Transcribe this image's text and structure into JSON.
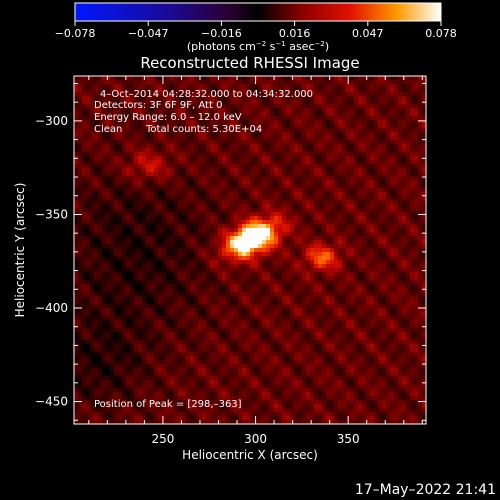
{
  "chart_data": {
    "type": "heatmap",
    "title": "Reconstructed RHESSI Image",
    "xlabel": "Heliocentric X (arcsec)",
    "ylabel": "Heliocentric Y (arcsec)",
    "xlim": [
      202,
      392
    ],
    "ylim": [
      -462,
      -276
    ],
    "x_ticks": [
      250,
      300,
      350
    ],
    "y_ticks": [
      -300,
      -350,
      -400,
      -450
    ],
    "colorbar": {
      "ticks": [
        "−0.078",
        "−0.047",
        "−0.016",
        "0.016",
        "0.047",
        "0.078"
      ],
      "range": [
        -0.078,
        0.078
      ],
      "unit_prefix": "(photons cm",
      "unit_exp1": "−2",
      "unit_mid": " s",
      "unit_exp2": "−1",
      "unit_mid2": " asec",
      "unit_exp3": "−2",
      "unit_suffix": ")"
    },
    "annotations": {
      "time_range": "4–Oct–2014 04:28:32.000 to 04:34:32.000",
      "detectors": "Detectors: 3F 6F 9F, Att 0",
      "energy": "Energy Range: 6.0 – 12.0 keV",
      "method": "Clean",
      "counts": "Total counts: 5.30E+04",
      "peak": "Position of Peak = [298,–363]"
    },
    "peak": {
      "x": 298,
      "y": -363
    },
    "sources": [
      {
        "x": 298,
        "y": -363,
        "amp": 0.078,
        "sx": 11,
        "sy": 6,
        "rot": -25
      },
      {
        "x": 336,
        "y": -373,
        "amp": 0.034,
        "sx": 7,
        "sy": 5,
        "rot": 0
      },
      {
        "x": 242,
        "y": -324,
        "amp": 0.022,
        "sx": 9,
        "sy": 6,
        "rot": 0
      }
    ]
  },
  "footer": {
    "timestamp": "17–May–2022 21:41"
  }
}
